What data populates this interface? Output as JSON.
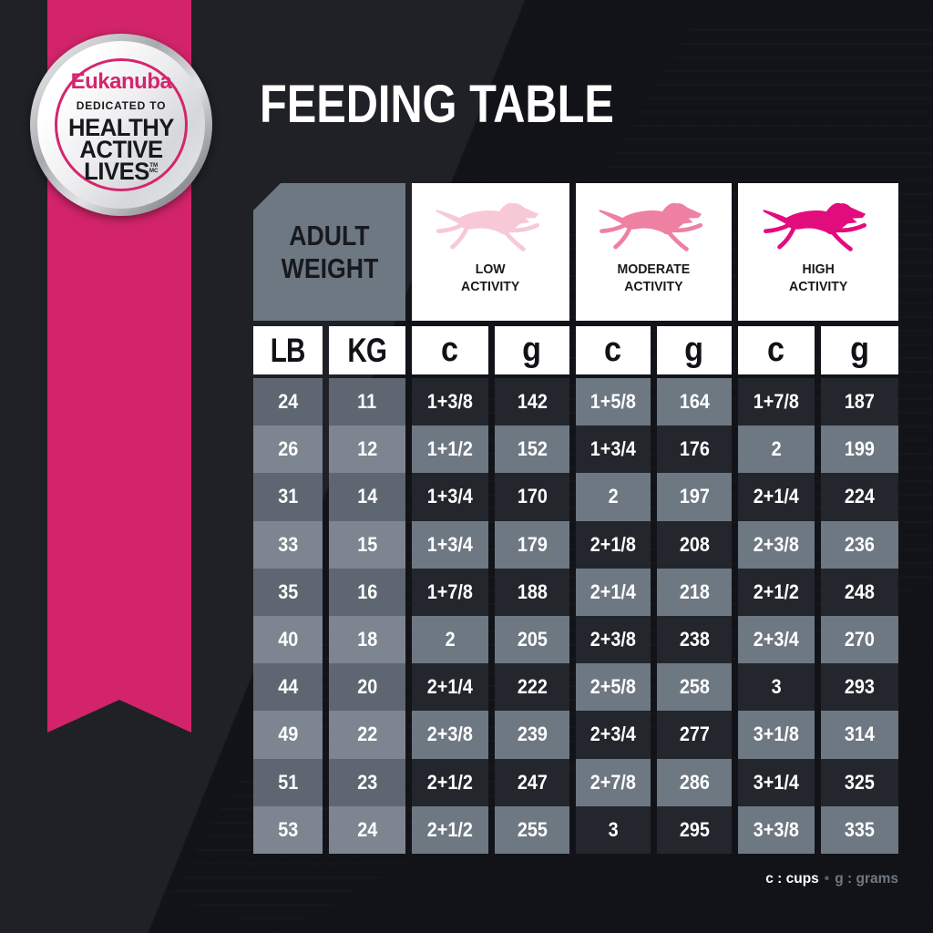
{
  "page_title": "FEEDING TABLE",
  "badge": {
    "brand": "Eukanuba",
    "dedication": "DEDICATED TO",
    "line1": "HEALTHY",
    "line2": "ACTIVE",
    "line3": "LIVES",
    "trademark": "TM",
    "mc": "MC"
  },
  "table": {
    "corner": {
      "line1": "ADULT",
      "line2": "WEIGHT"
    },
    "activities": [
      {
        "id": "low",
        "line1": "LOW",
        "line2": "ACTIVITY",
        "dog_color": "#f7c9d6"
      },
      {
        "id": "moderate",
        "line1": "MODERATE",
        "line2": "ACTIVITY",
        "dog_color": "#ee80a2"
      },
      {
        "id": "high",
        "line1": "HIGH",
        "line2": "ACTIVITY",
        "dog_color": "#e20c7d"
      }
    ]
  },
  "chart_data": {
    "type": "table",
    "title": "FEEDING TABLE",
    "column_groups": [
      "ADULT WEIGHT",
      "LOW ACTIVITY",
      "MODERATE ACTIVITY",
      "HIGH ACTIVITY"
    ],
    "columns": [
      "LB",
      "KG",
      "c",
      "g",
      "c",
      "g",
      "c",
      "g"
    ],
    "rows": [
      [
        "24",
        "11",
        "1+3/8",
        "142",
        "1+5/8",
        "164",
        "1+7/8",
        "187"
      ],
      [
        "26",
        "12",
        "1+1/2",
        "152",
        "1+3/4",
        "176",
        "2",
        "199"
      ],
      [
        "31",
        "14",
        "1+3/4",
        "170",
        "2",
        "197",
        "2+1/4",
        "224"
      ],
      [
        "33",
        "15",
        "1+3/4",
        "179",
        "2+1/8",
        "208",
        "2+3/8",
        "236"
      ],
      [
        "35",
        "16",
        "1+7/8",
        "188",
        "2+1/4",
        "218",
        "2+1/2",
        "248"
      ],
      [
        "40",
        "18",
        "2",
        "205",
        "2+3/8",
        "238",
        "2+3/4",
        "270"
      ],
      [
        "44",
        "20",
        "2+1/4",
        "222",
        "2+5/8",
        "258",
        "3",
        "293"
      ],
      [
        "49",
        "22",
        "2+3/8",
        "239",
        "2+3/4",
        "277",
        "3+1/8",
        "314"
      ],
      [
        "51",
        "23",
        "2+1/2",
        "247",
        "2+7/8",
        "286",
        "3+1/4",
        "325"
      ],
      [
        "53",
        "24",
        "2+1/2",
        "255",
        "3",
        "295",
        "3+3/8",
        "335"
      ]
    ],
    "units_note": "c : cups  g : grams"
  },
  "legend": {
    "cups": "c : cups",
    "bullet": "•",
    "grams": "g : grams"
  },
  "colors": {
    "background": "#15171d",
    "ribbon_pink": "#d3246b",
    "brand_pink": "#d5256d",
    "cell_dark": "#23262d",
    "cell_gray": "#6e7883",
    "weight_dark": "#5e6771",
    "weight_light": "#7d8690",
    "header_white": "#ffffff",
    "text_black": "#17191d"
  }
}
